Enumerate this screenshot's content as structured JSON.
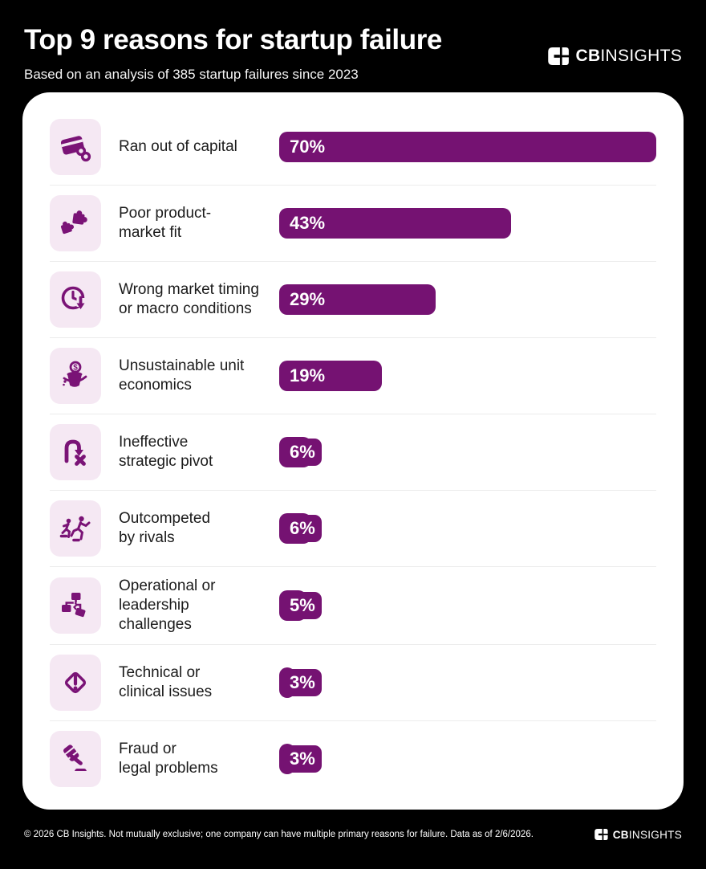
{
  "header": {
    "title": "Top 9 reasons for startup failure",
    "subtitle": "Based on an analysis of 385 startup failures since 2023",
    "brand_bold": "CB",
    "brand_light": "INSIGHTS"
  },
  "chart_data": {
    "type": "bar",
    "orientation": "horizontal",
    "title": "Top 9 reasons for startup failure",
    "subtitle": "Based on an analysis of 385 startup failures since 2023",
    "categories": [
      "Ran out of capital",
      "Poor product-market fit",
      "Wrong market timing or macro conditions",
      "Unsustainable unit economics",
      "Ineffective strategic pivot",
      "Outcompeted by rivals",
      "Operational or leadership challenges",
      "Technical or clinical issues",
      "Fraud or legal problems"
    ],
    "values": [
      70,
      43,
      29,
      19,
      6,
      6,
      5,
      3,
      3
    ],
    "unit": "%",
    "xlim": [
      0,
      70
    ],
    "grid": false,
    "legend": false,
    "bar_color": "#751272",
    "data_labels": [
      "70%",
      "43%",
      "29%",
      "19%",
      "6%",
      "6%",
      "5%",
      "3%",
      "3%"
    ]
  },
  "reasons": [
    {
      "label": "Ran out of capital",
      "label_lines": [
        "Ran out of capital"
      ],
      "value": 70,
      "display": "70%",
      "icon": "credit-card-coins-icon"
    },
    {
      "label": "Poor product-market fit",
      "label_lines": [
        "Poor product-",
        "market fit"
      ],
      "value": 43,
      "display": "43%",
      "icon": "puzzle-pieces-icon"
    },
    {
      "label": "Wrong market timing or macro conditions",
      "label_lines": [
        "Wrong market timing",
        "or macro conditions"
      ],
      "value": 29,
      "display": "29%",
      "icon": "clock-down-arrow-icon"
    },
    {
      "label": "Unsustainable unit economics",
      "label_lines": [
        "Unsustainable unit",
        "economics"
      ],
      "value": 19,
      "display": "19%",
      "icon": "leaky-bucket-dollar-icon"
    },
    {
      "label": "Ineffective strategic pivot",
      "label_lines": [
        "Ineffective",
        "strategic pivot"
      ],
      "value": 6,
      "display": "6%",
      "icon": "pivot-arrow-x-icon"
    },
    {
      "label": "Outcompeted by rivals",
      "label_lines": [
        "Outcompeted",
        "by rivals"
      ],
      "value": 6,
      "display": "6%",
      "icon": "racing-rivals-icon"
    },
    {
      "label": "Operational or leadership challenges",
      "label_lines": [
        "Operational or",
        "leadership",
        "challenges"
      ],
      "value": 5,
      "display": "5%",
      "icon": "broken-org-chart-icon"
    },
    {
      "label": "Technical or clinical issues",
      "label_lines": [
        "Technical or",
        "clinical issues"
      ],
      "value": 3,
      "display": "3%",
      "icon": "diamond-alert-icon"
    },
    {
      "label": "Fraud or legal problems",
      "label_lines": [
        "Fraud or",
        "legal problems"
      ],
      "value": 3,
      "display": "3%",
      "icon": "gavel-icon"
    }
  ],
  "footer": {
    "note": "© 2026 CB Insights. Not mutually exclusive; one company can have multiple primary reasons for failure. Data as of 2/6/2026.",
    "brand_bold": "CB",
    "brand_light": "INSIGHTS"
  },
  "colors": {
    "background": "#000000",
    "card": "#ffffff",
    "bar": "#751272",
    "icon": "#7a1376",
    "icon_bg": "#f5e8f3",
    "divider": "#ececec"
  }
}
